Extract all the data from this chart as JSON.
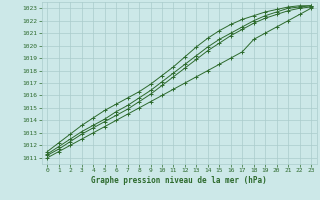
{
  "title": "Graphe pression niveau de la mer (hPa)",
  "xlim": [
    -0.5,
    23.5
  ],
  "ylim": [
    1010.5,
    1023.5
  ],
  "yticks": [
    1011,
    1012,
    1013,
    1014,
    1015,
    1016,
    1017,
    1018,
    1019,
    1020,
    1021,
    1022,
    1023
  ],
  "xticks": [
    0,
    1,
    2,
    3,
    4,
    5,
    6,
    7,
    8,
    9,
    10,
    11,
    12,
    13,
    14,
    15,
    16,
    17,
    18,
    19,
    20,
    21,
    22,
    23
  ],
  "background_color": "#cce8e8",
  "grid_color": "#aacccc",
  "line_color": "#2d6a2d",
  "marker": "+",
  "series": [
    [
      1011.0,
      1011.5,
      1012.0,
      1012.5,
      1013.0,
      1013.5,
      1014.0,
      1014.5,
      1015.0,
      1015.5,
      1016.0,
      1016.5,
      1017.0,
      1017.5,
      1018.0,
      1018.5,
      1019.0,
      1019.5,
      1020.5,
      1021.0,
      1021.5,
      1022.0,
      1022.5,
      1023.0
    ],
    [
      1011.2,
      1011.7,
      1012.3,
      1012.9,
      1013.4,
      1013.9,
      1014.4,
      1014.9,
      1015.5,
      1016.1,
      1016.8,
      1017.5,
      1018.2,
      1018.9,
      1019.6,
      1020.2,
      1020.8,
      1021.3,
      1021.8,
      1022.2,
      1022.5,
      1022.8,
      1023.0,
      1023.1
    ],
    [
      1011.3,
      1011.9,
      1012.5,
      1013.1,
      1013.6,
      1014.1,
      1014.7,
      1015.2,
      1015.8,
      1016.4,
      1017.1,
      1017.8,
      1018.5,
      1019.2,
      1019.9,
      1020.5,
      1021.0,
      1021.5,
      1022.0,
      1022.4,
      1022.7,
      1023.0,
      1023.1,
      1023.2
    ],
    [
      1011.5,
      1012.2,
      1012.9,
      1013.6,
      1014.2,
      1014.8,
      1015.3,
      1015.8,
      1016.3,
      1016.9,
      1017.6,
      1018.3,
      1019.1,
      1019.9,
      1020.6,
      1021.2,
      1021.7,
      1022.1,
      1022.4,
      1022.7,
      1022.9,
      1023.1,
      1023.2,
      1023.2
    ]
  ]
}
